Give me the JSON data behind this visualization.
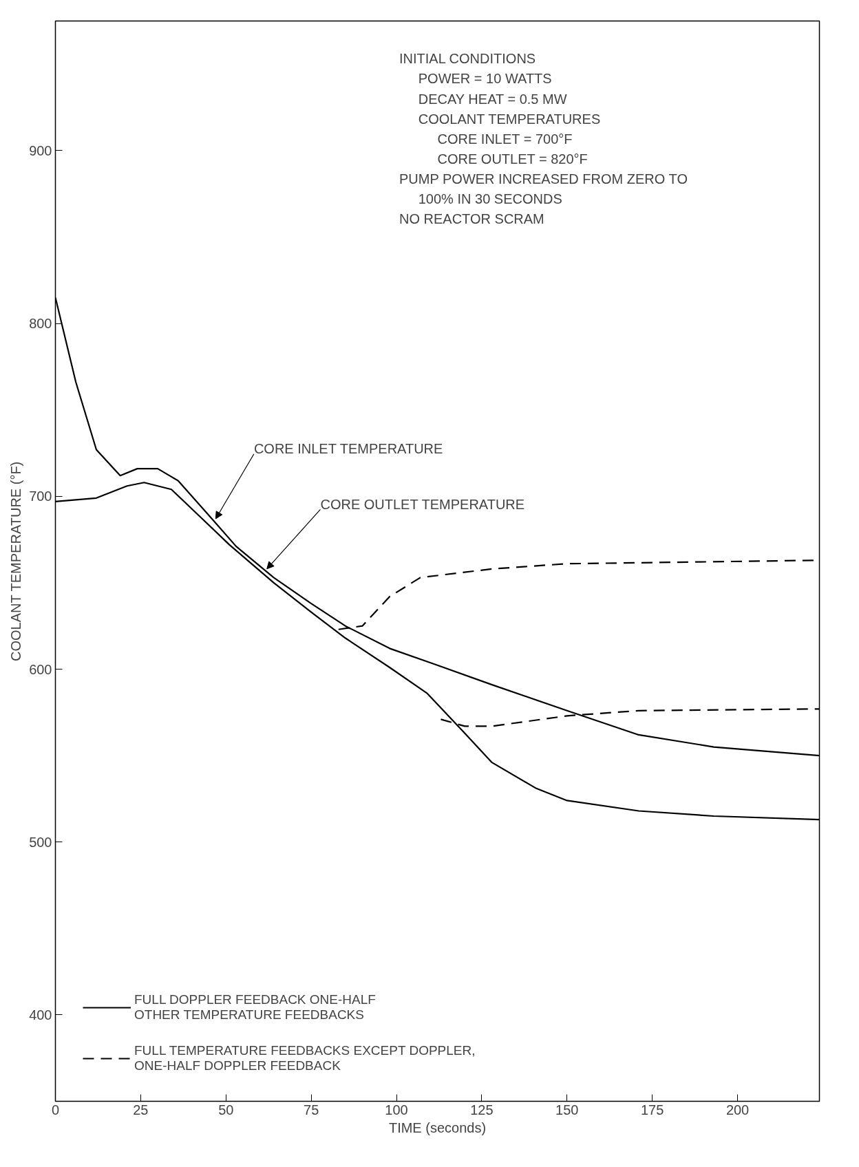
{
  "chart_data": {
    "type": "line",
    "xlabel": "TIME (seconds)",
    "ylabel": "COOLANT TEMPERATURE (°F)",
    "xlim": [
      0,
      224
    ],
    "ylim": [
      350,
      975
    ],
    "xticks": [
      0,
      25,
      50,
      75,
      100,
      125,
      150,
      175,
      200
    ],
    "yticks": [
      400,
      500,
      600,
      700,
      800,
      900
    ],
    "grid": false,
    "legend": "bottom left",
    "marker": "none",
    "series": [
      {
        "name": "FULL DOPPLER FEEDBACK ONE-HALF OTHER TEMPERATURE FEEDBACKS",
        "color": "#000000",
        "line_style": "solid",
        "x": [
          0,
          6,
          12,
          19,
          24,
          30,
          36,
          45,
          53,
          64,
          75,
          85,
          98,
          111,
          128,
          150,
          171,
          193,
          224
        ],
        "values": [
          815,
          766,
          727,
          712,
          716,
          716,
          709,
          689,
          671,
          653,
          638,
          625,
          612,
          603,
          591,
          576,
          562,
          555,
          550
        ]
      },
      {
        "color": "#000000",
        "line_style": "solid",
        "x": [
          0,
          12,
          21,
          26,
          34,
          42,
          51,
          64,
          75,
          85,
          98,
          109,
          120,
          128,
          141,
          150,
          171,
          193,
          224
        ],
        "values": [
          697,
          699,
          706,
          708,
          704,
          689,
          672,
          650,
          633,
          618,
          601,
          586,
          563,
          546,
          531,
          524,
          518,
          515,
          513
        ]
      },
      {
        "name": "FULL TEMPERATURE FEEDBACKS EXCEPT DOPPLER, ONE-HALF DOPPLER FEEDBACK",
        "color": "#000000",
        "line_style": "dashed",
        "x": [
          83,
          90,
          98,
          107,
          128,
          150,
          224
        ],
        "values": [
          623,
          625,
          642,
          653,
          658,
          661,
          663
        ]
      },
      {
        "color": "#000000",
        "line_style": "dashed",
        "x": [
          113,
          120,
          128,
          150,
          171,
          224
        ],
        "values": [
          571,
          567,
          567,
          573,
          576,
          577
        ]
      }
    ],
    "annotations": [
      {
        "text": "CORE INLET TEMPERATURE",
        "x": 47,
        "y": 687
      },
      {
        "text": "CORE OUTLET TEMPERATURE",
        "x": 62,
        "y": 658
      },
      "INITIAL CONDITIONS",
      "POWER = 10 WATTS",
      "DECAY HEAT = 0.5 MW",
      "COOLANT TEMPERATURES",
      "CORE INLET = 700°F",
      "CORE OUTLET = 820°F",
      "PUMP POWER INCREASED FROM ZERO TO",
      "100% IN 30 SECONDS",
      "NO REACTOR SCRAM"
    ]
  }
}
